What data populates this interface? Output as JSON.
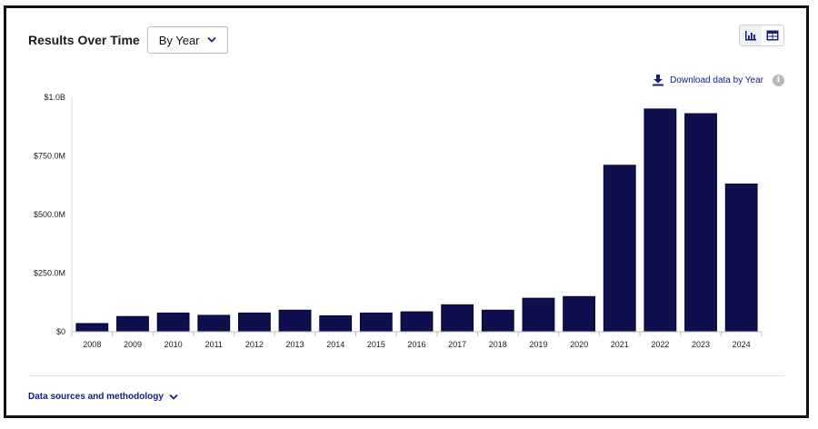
{
  "header": {
    "title": "Results Over Time",
    "period_select": "By Year"
  },
  "toolbar": {
    "chart_view_icon": "bar-chart-icon",
    "table_view_icon": "table-icon",
    "download_label": "Download data by Year",
    "info_icon": "info-icon"
  },
  "footer": {
    "methodology_label": "Data sources and methodology"
  },
  "colors": {
    "bar": "#0d0f4f",
    "accent": "#14207a"
  },
  "chart_data": {
    "type": "bar",
    "categories": [
      "2008",
      "2009",
      "2010",
      "2011",
      "2012",
      "2013",
      "2014",
      "2015",
      "2016",
      "2017",
      "2018",
      "2019",
      "2020",
      "2021",
      "2022",
      "2023",
      "2024"
    ],
    "values": [
      35000000,
      65000000,
      80000000,
      70000000,
      80000000,
      92000000,
      68000000,
      80000000,
      85000000,
      115000000,
      92000000,
      143000000,
      150000000,
      710000000,
      950000000,
      930000000,
      630000000
    ],
    "ylim": [
      0,
      1000000000
    ],
    "yticks": [
      0,
      250000000,
      500000000,
      750000000,
      1000000000
    ],
    "ytick_labels": [
      "$0",
      "$250.0M",
      "$500.0M",
      "$750.0M",
      "$1.0B"
    ],
    "grid": false
  }
}
